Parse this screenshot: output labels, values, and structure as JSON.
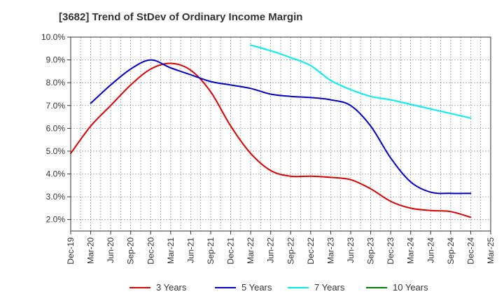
{
  "chart_data": {
    "type": "line",
    "title": "[3682]  Trend of StDev of Ordinary Income Margin",
    "xlabel": "",
    "ylabel": "",
    "categories": [
      "Dec-19",
      "Mar-20",
      "Jun-20",
      "Sep-20",
      "Dec-20",
      "Mar-21",
      "Jun-21",
      "Sep-21",
      "Dec-21",
      "Mar-22",
      "Jun-22",
      "Sep-22",
      "Dec-22",
      "Mar-23",
      "Jun-23",
      "Sep-23",
      "Dec-23",
      "Mar-24",
      "Jun-24",
      "Sep-24",
      "Dec-24",
      "Mar-25"
    ],
    "y_ticks": [
      "2.0%",
      "3.0%",
      "4.0%",
      "5.0%",
      "6.0%",
      "7.0%",
      "8.0%",
      "9.0%",
      "10.0%"
    ],
    "ylim": [
      1.5,
      10.0
    ],
    "grid": true,
    "legend_position": "bottom",
    "series": [
      {
        "name": "3 Years",
        "color": "#dd0000",
        "values": [
          4.9,
          6.1,
          7.0,
          7.9,
          8.6,
          8.85,
          8.55,
          7.6,
          6.1,
          4.9,
          4.15,
          3.9,
          3.9,
          3.85,
          3.75,
          3.35,
          2.8,
          2.5,
          2.4,
          2.35,
          2.1,
          null
        ]
      },
      {
        "name": "5 Years",
        "color": "#0000cc",
        "values": [
          null,
          7.1,
          7.9,
          8.6,
          9.0,
          8.65,
          8.35,
          8.05,
          7.9,
          7.75,
          7.5,
          7.4,
          7.35,
          7.25,
          7.0,
          6.1,
          4.7,
          3.65,
          3.2,
          3.15,
          3.15,
          null
        ]
      },
      {
        "name": "7 Years",
        "color": "#00eeee",
        "values": [
          null,
          null,
          null,
          null,
          null,
          null,
          null,
          null,
          null,
          9.65,
          9.4,
          9.1,
          8.75,
          8.1,
          7.7,
          7.4,
          7.25,
          7.05,
          6.85,
          6.65,
          6.45,
          null
        ]
      },
      {
        "name": "10 Years",
        "color": "#008000",
        "values": [
          null,
          null,
          null,
          null,
          null,
          null,
          null,
          null,
          null,
          null,
          null,
          null,
          null,
          null,
          null,
          null,
          null,
          null,
          null,
          null,
          null,
          null
        ]
      }
    ]
  }
}
